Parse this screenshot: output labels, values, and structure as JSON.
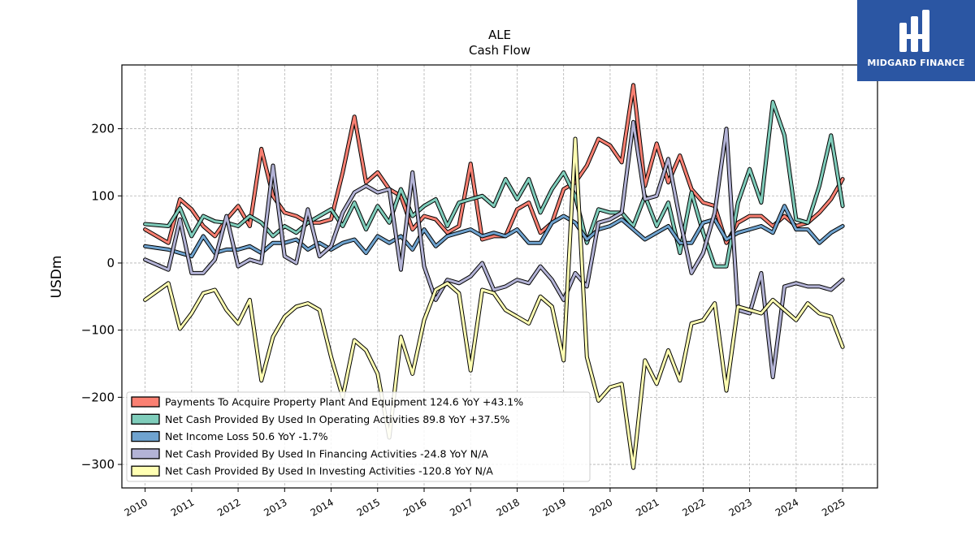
{
  "logo": {
    "text": "MIDGARD FINANCE"
  },
  "chart_data": {
    "type": "line",
    "title": "ALE",
    "subtitle": "Cash Flow",
    "xlabel": "",
    "ylabel": "USDm",
    "xlim": [
      2009.5,
      2025.75
    ],
    "ylim": [
      -335,
      295
    ],
    "x_ticks": [
      2010,
      2011,
      2012,
      2013,
      2014,
      2015,
      2016,
      2017,
      2018,
      2019,
      2020,
      2021,
      2022,
      2023,
      2024,
      2025
    ],
    "x_tick_labels": [
      "2010",
      "2011",
      "2012",
      "2013",
      "2014",
      "2015",
      "2016",
      "2017",
      "2018",
      "2019",
      "2020",
      "2021",
      "2022",
      "2023",
      "2024",
      "2025"
    ],
    "y_ticks": [
      200,
      100,
      0,
      -100,
      -200,
      -300
    ],
    "y_tick_labels": [
      "200",
      "100",
      "0",
      "−100",
      "−200",
      "−300"
    ],
    "grid": true,
    "legend_position": "bottom-left",
    "x": [
      2010.0,
      2010.5,
      2010.75,
      2011.0,
      2011.25,
      2011.5,
      2011.75,
      2012.0,
      2012.25,
      2012.5,
      2012.75,
      2013.0,
      2013.25,
      2013.5,
      2013.75,
      2014.0,
      2014.25,
      2014.5,
      2014.75,
      2015.0,
      2015.25,
      2015.5,
      2015.75,
      2016.0,
      2016.25,
      2016.5,
      2016.75,
      2017.0,
      2017.25,
      2017.5,
      2017.75,
      2018.0,
      2018.25,
      2018.5,
      2018.75,
      2019.0,
      2019.25,
      2019.5,
      2019.75,
      2020.0,
      2020.25,
      2020.5,
      2020.75,
      2021.0,
      2021.25,
      2021.5,
      2021.75,
      2022.0,
      2022.25,
      2022.5,
      2022.75,
      2023.0,
      2023.25,
      2023.5,
      2023.75,
      2024.0,
      2024.25,
      2024.5,
      2024.75,
      2025.0
    ],
    "series": [
      {
        "name": "Payments To Acquire Property Plant And Equipment",
        "legend": "Payments To Acquire Property Plant And Equipment  124.6 YoY +43.1%",
        "color": "#fa8072",
        "values": [
          50,
          30,
          95,
          80,
          55,
          40,
          65,
          85,
          55,
          170,
          100,
          75,
          70,
          60,
          60,
          65,
          135,
          218,
          120,
          135,
          110,
          100,
          50,
          70,
          65,
          45,
          55,
          148,
          35,
          40,
          40,
          80,
          90,
          45,
          60,
          110,
          120,
          145,
          185,
          175,
          150,
          265,
          115,
          178,
          120,
          160,
          110,
          90,
          85,
          30,
          60,
          70,
          70,
          55,
          70,
          55,
          60,
          75,
          95,
          125
        ]
      },
      {
        "name": "Net Cash Provided By Used In Operating Activities",
        "legend": "Net Cash Provided By Used In Operating Activities  89.8 YoY +37.5%",
        "color": "#7fcdbb",
        "values": [
          58,
          55,
          82,
          40,
          70,
          62,
          60,
          55,
          70,
          60,
          40,
          55,
          45,
          60,
          70,
          80,
          55,
          90,
          50,
          85,
          60,
          110,
          70,
          85,
          95,
          55,
          90,
          95,
          100,
          85,
          125,
          95,
          125,
          75,
          110,
          135,
          100,
          30,
          80,
          75,
          75,
          55,
          100,
          55,
          90,
          15,
          105,
          45,
          -5,
          -5,
          90,
          140,
          90,
          240,
          190,
          65,
          60,
          115,
          190,
          85
        ]
      },
      {
        "name": "Net Income Loss",
        "legend": "Net Income Loss  50.6 YoY -1.7%",
        "color": "#6fa3cf",
        "values": [
          25,
          20,
          15,
          10,
          40,
          15,
          20,
          20,
          25,
          15,
          30,
          30,
          35,
          20,
          30,
          20,
          30,
          35,
          15,
          40,
          30,
          40,
          20,
          50,
          25,
          40,
          45,
          50,
          40,
          45,
          40,
          50,
          30,
          30,
          60,
          70,
          60,
          35,
          50,
          55,
          65,
          50,
          35,
          45,
          55,
          30,
          30,
          60,
          65,
          35,
          45,
          50,
          55,
          45,
          85,
          50,
          50,
          30,
          45,
          55
        ]
      },
      {
        "name": "Net Cash Provided By Used In Financing Activities",
        "legend": "Net Cash Provided By Used In Financing Activities  -24.8 YoY N/A",
        "color": "#b3b3d6",
        "values": [
          5,
          -10,
          65,
          -15,
          -15,
          5,
          70,
          -5,
          5,
          0,
          145,
          10,
          0,
          80,
          10,
          25,
          75,
          105,
          115,
          105,
          110,
          -10,
          135,
          -5,
          -55,
          -25,
          -30,
          -20,
          0,
          -40,
          -35,
          -25,
          -30,
          -5,
          -25,
          -55,
          -15,
          -35,
          60,
          65,
          75,
          210,
          95,
          100,
          155,
          65,
          -15,
          15,
          75,
          200,
          -70,
          -75,
          -15,
          -170,
          -35,
          -30,
          -35,
          -35,
          -40,
          -25
        ]
      },
      {
        "name": "Net Cash Provided By Used In Investing Activities",
        "legend": "Net Cash Provided By Used In Investing Activities  -120.8 YoY N/A",
        "color": "#ffffb3",
        "values": [
          -55,
          -30,
          -98,
          -75,
          -45,
          -40,
          -70,
          -90,
          -55,
          -175,
          -110,
          -80,
          -65,
          -60,
          -70,
          -140,
          -200,
          -115,
          -130,
          -165,
          -260,
          -110,
          -165,
          -85,
          -40,
          -30,
          -45,
          -160,
          -40,
          -45,
          -70,
          -80,
          -90,
          -50,
          -65,
          -145,
          185,
          -140,
          -205,
          -185,
          -180,
          -305,
          -145,
          -180,
          -130,
          -175,
          -90,
          -85,
          -60,
          -190,
          -65,
          -70,
          -75,
          -55,
          -70,
          -85,
          -60,
          -75,
          -80,
          -125
        ]
      }
    ]
  }
}
